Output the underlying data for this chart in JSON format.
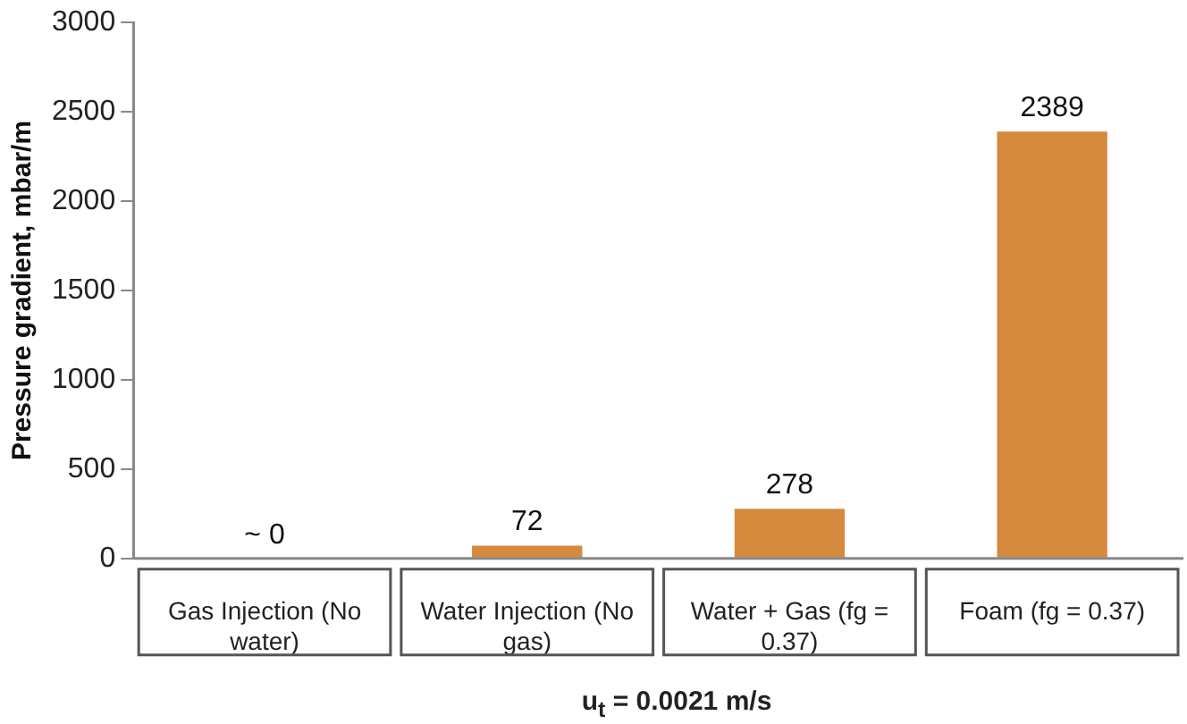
{
  "chart_data": {
    "type": "bar",
    "ylabel": "Pressure gradient, mbar/m",
    "xlabel": "u$_{t}$ =  0.0021 m/s",
    "categories": [
      "Gas Injection (No water)",
      "Water Injection (No gas)",
      "Water + Gas (fg = 0.37)",
      "Foam (fg = 0.37)"
    ],
    "values": [
      0,
      72,
      278,
      2389
    ],
    "value_labels": [
      "~ 0",
      "72",
      "278",
      "2389"
    ],
    "color": "#d58a3e",
    "ylim": [
      0,
      3000
    ],
    "yticks": [
      0,
      500,
      1000,
      1500,
      2000,
      2500,
      3000
    ]
  }
}
